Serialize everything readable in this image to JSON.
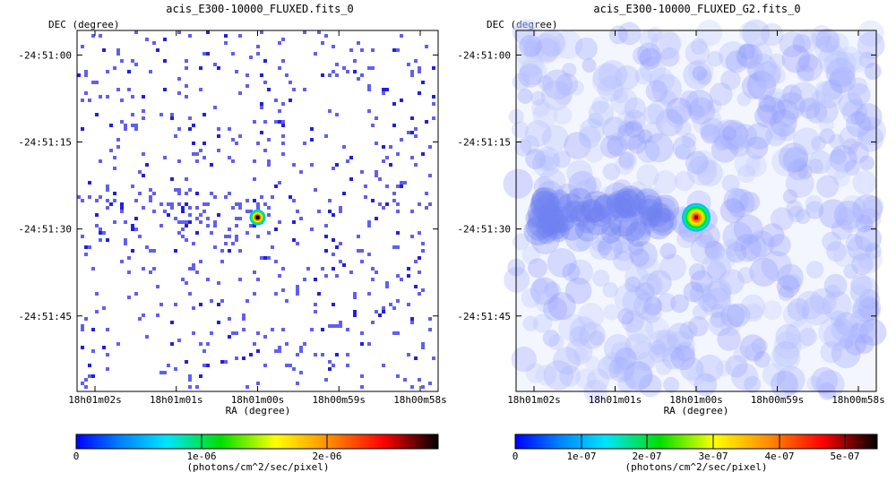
{
  "panels": [
    {
      "title": "acis_E300-10000_FLUXED.fits_0",
      "ylabel": "DEC (degree)",
      "xlabel": "RA (degree)",
      "image_style": "sparse",
      "source_level": 1.0,
      "colorbar": {
        "ticks": [
          "0",
          "1e-06",
          "2e-06"
        ],
        "label": "(photons/cm^2/sec/pixel)"
      }
    },
    {
      "title": "acis_E300-10000_FLUXED_G2.fits_0",
      "ylabel": "DEC (degree)",
      "xlabel": "RA (degree)",
      "image_style": "smoothed",
      "source_level": 0.85,
      "colorbar": {
        "ticks": [
          "0",
          "1e-07",
          "2e-07",
          "3e-07",
          "4e-07",
          "5e-07"
        ],
        "label": "(photons/cm^2/sec/pixel)"
      }
    }
  ],
  "chart_data": [
    {
      "type": "heatmap",
      "title": "acis_E300-10000_FLUXED.fits_0",
      "xlabel": "RA (degree)",
      "ylabel": "DEC (degree)",
      "x_ticks": [
        "18h01m02s",
        "18h01m01s",
        "18h01m00s",
        "18h00m59s",
        "18h00m58s"
      ],
      "y_ticks": [
        "-24:51:00",
        "-24:51:15",
        "-24:51:30",
        "-24:51:45"
      ],
      "colorbar_range": [
        0,
        2.9e-06
      ],
      "colorbar_ticks": [
        0,
        1e-06,
        2e-06
      ],
      "colorbar_label": "(photons/cm^2/sec/pixel)",
      "colormap": [
        "#0000ff",
        "#00e5ff",
        "#00e000",
        "#ffff00",
        "#ff8c00",
        "#ff0000",
        "#000000"
      ],
      "source": {
        "ra": "18h01m00s",
        "dec": "-24:51:28"
      }
    },
    {
      "type": "heatmap",
      "title": "acis_E300-10000_FLUXED_G2.fits_0",
      "xlabel": "RA (degree)",
      "ylabel": "DEC (degree)",
      "x_ticks": [
        "18h01m02s",
        "18h01m01s",
        "18h01m00s",
        "18h00m59s",
        "18h00m58s"
      ],
      "y_ticks": [
        "-24:51:00",
        "-24:51:15",
        "-24:51:30",
        "-24:51:45"
      ],
      "colorbar_range": [
        0,
        5.5e-07
      ],
      "colorbar_ticks": [
        0,
        1e-07,
        2e-07,
        3e-07,
        4e-07,
        5e-07
      ],
      "colorbar_label": "(photons/cm^2/sec/pixel)",
      "colormap": [
        "#0000ff",
        "#00e5ff",
        "#00e000",
        "#ffff00",
        "#ff8c00",
        "#ff0000",
        "#000000"
      ],
      "source": {
        "ra": "18h01m00s",
        "dec": "-24:51:28"
      }
    }
  ]
}
